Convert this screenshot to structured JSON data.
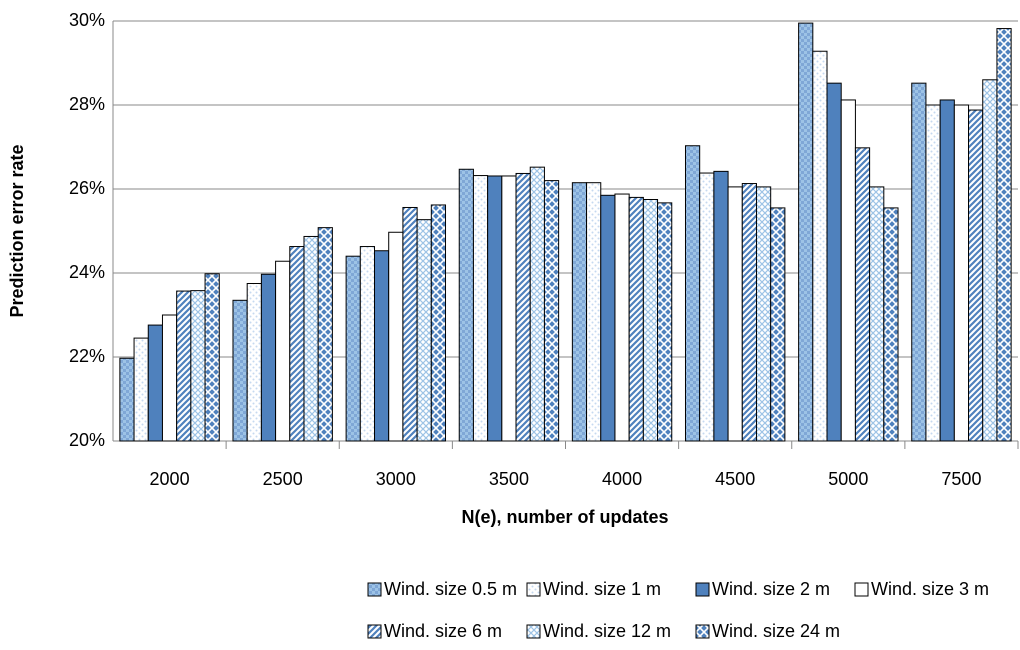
{
  "chart_data": {
    "type": "bar",
    "x_label": "N(e), number of updates",
    "y_label": "Prediction error rate",
    "categories": [
      "2000",
      "2500",
      "3000",
      "3500",
      "4000",
      "4500",
      "5000",
      "7500"
    ],
    "series": [
      {
        "name": "Wind. size 0.5 m",
        "color": "#9dc3e6",
        "values": [
          21.97,
          23.35,
          24.4,
          26.47,
          26.15,
          27.03,
          29.95,
          28.52
        ]
      },
      {
        "name": "Wind. size 1 m",
        "color": "#c5d9f0",
        "values": [
          22.45,
          23.75,
          24.63,
          26.32,
          26.15,
          26.38,
          29.28,
          28.0
        ]
      },
      {
        "name": "Wind. size 2 m",
        "color": "#4f81bd",
        "values": [
          22.76,
          23.97,
          24.53,
          26.31,
          25.85,
          26.42,
          28.52,
          28.12
        ]
      },
      {
        "name": "Wind. size 3 m",
        "color": "#ffffff",
        "values": [
          23.0,
          24.28,
          24.97,
          26.31,
          25.88,
          26.05,
          28.12,
          28.0
        ]
      },
      {
        "name": "Wind. size 6 m",
        "color": "#4f81bd",
        "values": [
          23.57,
          24.63,
          25.56,
          26.37,
          25.8,
          26.13,
          26.98,
          27.88
        ]
      },
      {
        "name": "Wind. size 12 m",
        "color": "#9dc3e6",
        "values": [
          23.58,
          24.87,
          25.27,
          26.52,
          25.75,
          26.05,
          26.05,
          28.6
        ]
      },
      {
        "name": "Wind. size 24 m",
        "color": "#4f81bd",
        "values": [
          23.98,
          25.08,
          25.62,
          26.2,
          25.67,
          25.55,
          25.55,
          29.82
        ]
      }
    ],
    "ylim": [
      20,
      30
    ],
    "yticks": [
      {
        "value": 20,
        "label": "20%"
      },
      {
        "value": 22,
        "label": "22%"
      },
      {
        "value": 24,
        "label": "24%"
      },
      {
        "value": 26,
        "label": "26%"
      },
      {
        "value": 28,
        "label": "28%"
      },
      {
        "value": 30,
        "label": "30%"
      }
    ],
    "grid": true
  }
}
